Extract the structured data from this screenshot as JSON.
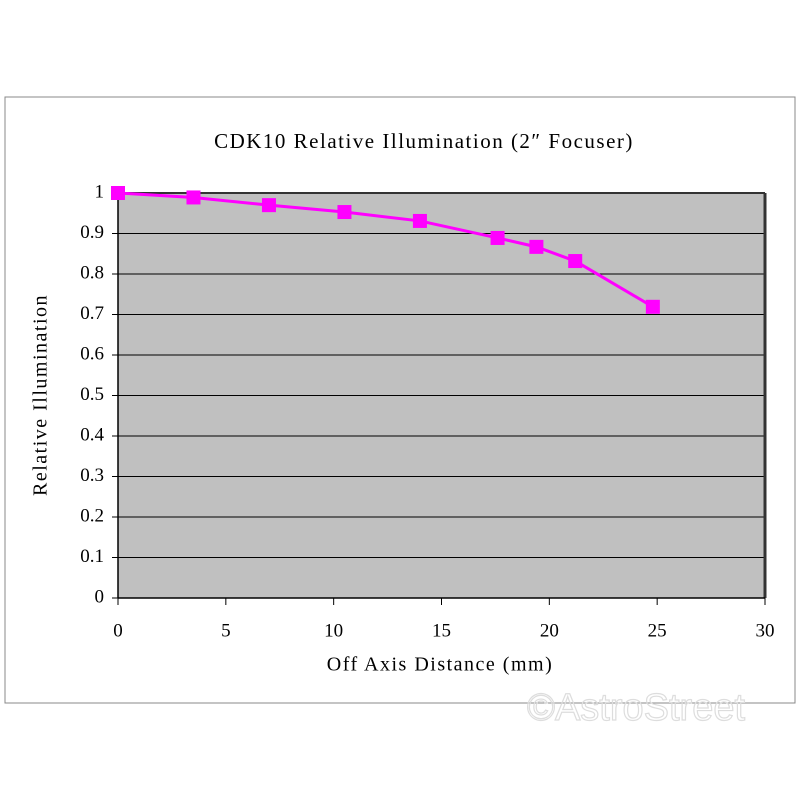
{
  "chart_data": {
    "type": "line",
    "title": "CDK10 Relative Illumination (2″ Focuser)",
    "x_label": "Off Axis Distance (mm)",
    "y_label": "Relative Illumination",
    "x": [
      0,
      3.5,
      7,
      10.5,
      14,
      17.6,
      19.4,
      21.2,
      24.8
    ],
    "series": [
      {
        "name": "Relative Illumination",
        "color": "#ff00ff",
        "values": [
          1.0,
          0.989,
          0.97,
          0.953,
          0.931,
          0.889,
          0.867,
          0.832,
          0.719
        ]
      }
    ],
    "xlim": [
      0,
      30
    ],
    "xticks": [
      0,
      5,
      10,
      15,
      20,
      25,
      30
    ],
    "ylim": [
      0,
      1
    ],
    "yticks": [
      0,
      0.1,
      0.2,
      0.3,
      0.4,
      0.5,
      0.6,
      0.7,
      0.8,
      0.9,
      1
    ],
    "grid": true,
    "plot_background": "#c0c0c0",
    "watermark": "©AstroStreet"
  }
}
